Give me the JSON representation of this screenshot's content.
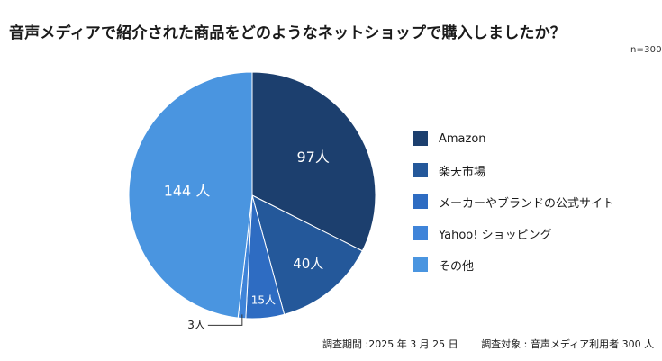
{
  "title": "音声メディアで紹介された商品をどのようなネットショップで購入しましたか？",
  "sample_size": "n=300",
  "footnote": {
    "period": "調査期間 :2025 年 3 月 25 日",
    "target": "調査対象 : 音声メディア利用者 300 人"
  },
  "chart_data": {
    "type": "pie",
    "title": "音声メディアで紹介された商品をどのようなネットショップで購入しましたか？",
    "unit": "人",
    "start_angle": "12 o'clock",
    "direction": "clockwise",
    "legend_position": "right",
    "categories": [
      "Amazon",
      "楽天市場",
      "メーカーやブランドの公式サイト",
      "Yahoo! ショッピング",
      "その他"
    ],
    "values": [
      97,
      40,
      15,
      3,
      144
    ],
    "data_labels": [
      "97人",
      "40人",
      "15人",
      "3人",
      "144 人"
    ],
    "colors": [
      "#1c3f6e",
      "#24589a",
      "#2e6cc2",
      "#3f84d9",
      "#4a95e0"
    ]
  }
}
